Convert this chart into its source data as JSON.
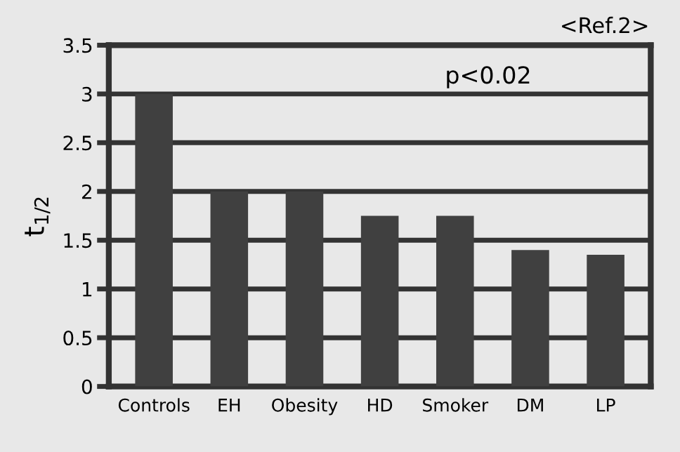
{
  "chart_data": {
    "type": "bar",
    "ylabel": "t$_{1/2}$",
    "categories": [
      "Controls",
      "EH",
      "Obesity",
      "HD",
      "Smoker",
      "DM",
      "LP"
    ],
    "values": [
      3,
      2,
      2,
      1.75,
      1.75,
      1.4,
      1.35
    ],
    "color": "#404040",
    "ylim": [
      0,
      3.5
    ],
    "yticks": [
      0,
      0.5,
      1,
      1.5,
      2,
      2.5,
      3,
      3.5
    ],
    "grid": "y",
    "annotations": [
      "<Ref.2>",
      "p<0.02"
    ]
  }
}
